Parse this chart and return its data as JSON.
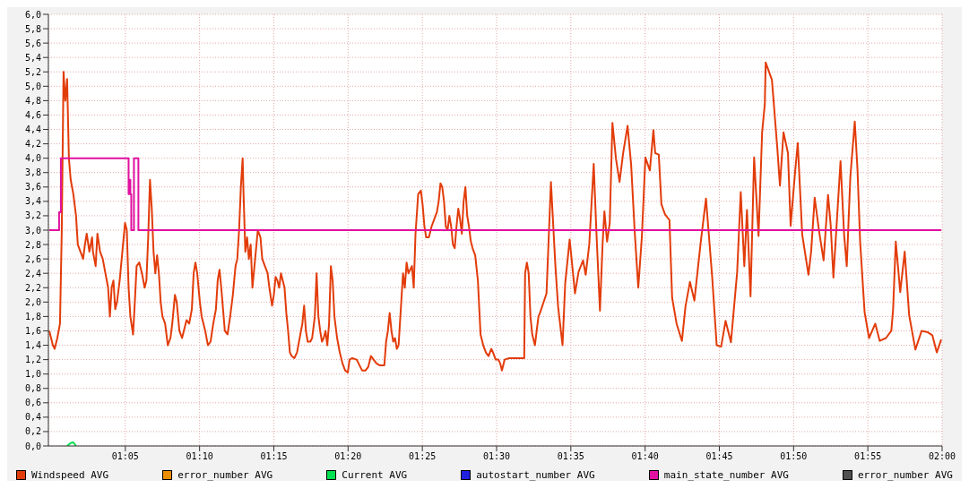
{
  "chart_data": {
    "type": "line",
    "grid": true,
    "legend": "bottom",
    "xlim": [
      0.997,
      2.0
    ],
    "xticks": [
      {
        "value": 1.083333,
        "label": "01:05"
      },
      {
        "value": 1.166667,
        "label": "01:10"
      },
      {
        "value": 1.25,
        "label": "01:15"
      },
      {
        "value": 1.333333,
        "label": "01:20"
      },
      {
        "value": 1.416667,
        "label": "01:25"
      },
      {
        "value": 1.5,
        "label": "01:30"
      },
      {
        "value": 1.583333,
        "label": "01:35"
      },
      {
        "value": 1.666667,
        "label": "01:40"
      },
      {
        "value": 1.75,
        "label": "01:45"
      },
      {
        "value": 1.833333,
        "label": "01:50"
      },
      {
        "value": 1.916667,
        "label": "01:55"
      },
      {
        "value": 2.0,
        "label": "02:00"
      }
    ],
    "ylim": [
      0,
      6
    ],
    "yticks": [
      {
        "value": 0,
        "label": "0,0"
      },
      {
        "value": 0.2,
        "label": "0,2"
      },
      {
        "value": 0.4,
        "label": "0,4"
      },
      {
        "value": 0.6,
        "label": "0,6"
      },
      {
        "value": 0.8,
        "label": "0,8"
      },
      {
        "value": 1.0,
        "label": "1,0"
      },
      {
        "value": 1.2,
        "label": "1,2"
      },
      {
        "value": 1.4,
        "label": "1,4"
      },
      {
        "value": 1.6,
        "label": "1,6"
      },
      {
        "value": 1.8,
        "label": "1,8"
      },
      {
        "value": 2.0,
        "label": "2,0"
      },
      {
        "value": 2.2,
        "label": "2,2"
      },
      {
        "value": 2.4,
        "label": "2,4"
      },
      {
        "value": 2.6,
        "label": "2,6"
      },
      {
        "value": 2.8,
        "label": "2,8"
      },
      {
        "value": 3.0,
        "label": "3,0"
      },
      {
        "value": 3.2,
        "label": "3,2"
      },
      {
        "value": 3.4,
        "label": "3,4"
      },
      {
        "value": 3.6,
        "label": "3,6"
      },
      {
        "value": 3.8,
        "label": "3,8"
      },
      {
        "value": 4.0,
        "label": "4,0"
      },
      {
        "value": 4.2,
        "label": "4,2"
      },
      {
        "value": 4.4,
        "label": "4,4"
      },
      {
        "value": 4.6,
        "label": "4,6"
      },
      {
        "value": 4.8,
        "label": "4,8"
      },
      {
        "value": 5.0,
        "label": "5,0"
      },
      {
        "value": 5.2,
        "label": "5,2"
      },
      {
        "value": 5.4,
        "label": "5,4"
      },
      {
        "value": 5.6,
        "label": "5,6"
      },
      {
        "value": 5.8,
        "label": "5,8"
      },
      {
        "value": 6.0,
        "label": "6,0"
      }
    ],
    "series": [
      {
        "name": "Windspeed AVG",
        "color": "#e23c0a",
        "x": [
          0.998,
          1.002,
          1.004,
          1.007,
          1.01,
          1.012,
          1.014,
          1.016,
          1.018,
          1.02,
          1.022,
          1.025,
          1.028,
          1.03,
          1.033,
          1.036,
          1.038,
          1.04,
          1.043,
          1.046,
          1.047,
          1.05,
          1.052,
          1.055,
          1.058,
          1.061,
          1.064,
          1.066,
          1.068,
          1.07,
          1.072,
          1.074,
          1.077,
          1.08,
          1.083,
          1.085,
          1.087,
          1.089,
          1.092,
          1.094,
          1.096,
          1.099,
          1.102,
          1.105,
          1.107,
          1.109,
          1.111,
          1.113,
          1.115,
          1.117,
          1.119,
          1.121,
          1.123,
          1.125,
          1.128,
          1.131,
          1.134,
          1.136,
          1.139,
          1.141,
          1.144,
          1.147,
          1.149,
          1.152,
          1.155,
          1.158,
          1.16,
          1.162,
          1.164,
          1.167,
          1.169,
          1.173,
          1.176,
          1.179,
          1.182,
          1.185,
          1.187,
          1.189,
          1.191,
          1.193,
          1.195,
          1.198,
          1.201,
          1.204,
          1.207,
          1.209,
          1.211,
          1.213,
          1.215,
          1.216,
          1.218,
          1.22,
          1.222,
          1.224,
          1.226,
          1.229,
          1.232,
          1.235,
          1.237,
          1.24,
          1.243,
          1.245,
          1.248,
          1.25,
          1.252,
          1.254,
          1.256,
          1.258,
          1.262,
          1.264,
          1.266,
          1.268,
          1.27,
          1.273,
          1.276,
          1.279,
          1.282,
          1.284,
          1.286,
          1.288,
          1.291,
          1.293,
          1.296,
          1.298,
          1.3,
          1.302,
          1.304,
          1.306,
          1.308,
          1.31,
          1.312,
          1.314,
          1.316,
          1.318,
          1.321,
          1.324,
          1.327,
          1.33,
          1.333,
          1.335,
          1.338,
          1.343,
          1.347,
          1.349,
          1.353,
          1.356,
          1.359,
          1.362,
          1.365,
          1.369,
          1.374,
          1.376,
          1.378,
          1.38,
          1.382,
          1.384,
          1.386,
          1.388,
          1.39,
          1.392,
          1.395,
          1.397,
          1.399,
          1.401,
          1.403,
          1.405,
          1.407,
          1.409,
          1.412,
          1.415,
          1.417,
          1.419,
          1.421,
          1.424,
          1.427,
          1.43,
          1.433,
          1.435,
          1.437,
          1.439,
          1.441,
          1.443,
          1.445,
          1.447,
          1.449,
          1.451,
          1.453,
          1.455,
          1.457,
          1.459,
          1.461,
          1.463,
          1.465,
          1.467,
          1.469,
          1.471,
          1.473,
          1.476,
          1.479,
          1.481,
          1.482,
          1.485,
          1.488,
          1.491,
          1.494,
          1.496,
          1.499,
          1.502,
          1.504,
          1.506,
          1.509,
          1.514,
          1.518,
          1.531,
          1.532,
          1.534,
          1.536,
          1.538,
          1.54,
          1.543,
          1.545,
          1.547,
          1.549,
          1.556,
          1.561,
          1.566,
          1.569,
          1.574,
          1.577,
          1.582,
          1.588,
          1.592,
          1.597,
          1.6,
          1.604,
          1.609,
          1.612,
          1.616,
          1.619,
          1.621,
          1.624,
          1.627,
          1.63,
          1.634,
          1.638,
          1.642,
          1.647,
          1.651,
          1.655,
          1.659,
          1.663,
          1.667,
          1.672,
          1.676,
          1.678,
          1.682,
          1.685,
          1.689,
          1.694,
          1.697,
          1.702,
          1.708,
          1.712,
          1.717,
          1.722,
          1.729,
          1.735,
          1.742,
          1.747,
          1.752,
          1.757,
          1.763,
          1.77,
          1.774,
          1.778,
          1.781,
          1.785,
          1.789,
          1.794,
          1.798,
          1.801,
          1.802,
          1.809,
          1.815,
          1.818,
          1.822,
          1.827,
          1.83,
          1.835,
          1.838,
          1.843,
          1.85,
          1.853,
          1.857,
          1.862,
          1.867,
          1.872,
          1.875,
          1.878,
          1.886,
          1.89,
          1.893,
          1.897,
          1.902,
          1.905,
          1.908,
          1.913,
          1.918,
          1.925,
          1.93,
          1.937,
          1.943,
          1.945,
          1.948,
          1.953,
          1.958,
          1.963,
          1.97,
          1.977,
          1.984,
          1.989,
          1.994,
          1.999
        ],
        "values": [
          1.6,
          1.4,
          1.35,
          1.5,
          1.7,
          3.0,
          5.2,
          4.8,
          5.1,
          4.0,
          3.7,
          3.5,
          3.2,
          2.8,
          2.7,
          2.6,
          2.8,
          2.95,
          2.7,
          2.9,
          2.7,
          2.5,
          2.95,
          2.7,
          2.6,
          2.4,
          2.2,
          1.8,
          2.2,
          2.3,
          1.9,
          2.0,
          2.3,
          2.7,
          3.1,
          3.0,
          2.2,
          1.8,
          1.55,
          2.0,
          2.5,
          2.55,
          2.4,
          2.2,
          2.3,
          2.9,
          3.7,
          3.3,
          2.7,
          2.4,
          2.65,
          2.4,
          2.0,
          1.8,
          1.7,
          1.4,
          1.5,
          1.7,
          2.1,
          2.0,
          1.6,
          1.5,
          1.6,
          1.75,
          1.7,
          1.9,
          2.4,
          2.55,
          2.4,
          2.0,
          1.8,
          1.6,
          1.4,
          1.45,
          1.7,
          1.9,
          2.3,
          2.45,
          2.2,
          1.9,
          1.6,
          1.55,
          1.8,
          2.1,
          2.5,
          2.6,
          3.0,
          3.6,
          4.0,
          3.5,
          2.7,
          2.9,
          2.6,
          2.8,
          2.2,
          2.6,
          3.0,
          2.9,
          2.6,
          2.5,
          2.4,
          2.2,
          1.95,
          2.1,
          2.35,
          2.3,
          2.2,
          2.4,
          2.2,
          1.85,
          1.6,
          1.3,
          1.25,
          1.22,
          1.3,
          1.5,
          1.7,
          1.95,
          1.6,
          1.45,
          1.45,
          1.5,
          1.8,
          2.4,
          1.8,
          1.6,
          1.45,
          1.5,
          1.6,
          1.4,
          1.7,
          2.5,
          2.3,
          1.8,
          1.5,
          1.3,
          1.15,
          1.05,
          1.02,
          1.2,
          1.22,
          1.2,
          1.1,
          1.05,
          1.05,
          1.1,
          1.25,
          1.2,
          1.15,
          1.12,
          1.12,
          1.45,
          1.6,
          1.85,
          1.6,
          1.45,
          1.5,
          1.35,
          1.4,
          1.8,
          2.4,
          2.2,
          2.55,
          2.4,
          2.45,
          2.5,
          2.2,
          2.95,
          3.5,
          3.55,
          3.35,
          3.05,
          2.9,
          2.9,
          3.05,
          3.15,
          3.25,
          3.4,
          3.65,
          3.6,
          3.4,
          3.05,
          3.0,
          3.2,
          3.05,
          2.8,
          2.75,
          3.05,
          3.3,
          3.15,
          2.95,
          3.4,
          3.6,
          3.2,
          3.05,
          2.85,
          2.75,
          2.65,
          2.3,
          1.8,
          1.55,
          1.4,
          1.3,
          1.25,
          1.35,
          1.3,
          1.2,
          1.2,
          1.15,
          1.05,
          1.2,
          1.22,
          1.22,
          1.22,
          2.4,
          2.55,
          2.4,
          1.8,
          1.55,
          1.4,
          1.6,
          1.8,
          1.86,
          2.12,
          3.67,
          2.5,
          1.94,
          1.4,
          2.26,
          2.87,
          2.12,
          2.42,
          2.58,
          2.38,
          2.8,
          3.92,
          2.98,
          1.88,
          2.82,
          3.26,
          2.84,
          3.1,
          4.49,
          3.99,
          3.67,
          4.07,
          4.45,
          3.91,
          2.98,
          2.2,
          2.9,
          4.01,
          3.83,
          4.39,
          4.07,
          4.05,
          3.36,
          3.22,
          3.14,
          2.06,
          1.7,
          1.46,
          1.94,
          2.28,
          2.02,
          2.82,
          3.44,
          2.34,
          1.4,
          1.38,
          1.74,
          1.44,
          2.42,
          3.53,
          2.5,
          3.28,
          2.08,
          4.01,
          2.92,
          4.36,
          4.75,
          5.33,
          5.09,
          4.15,
          3.62,
          4.36,
          4.07,
          3.06,
          3.81,
          4.21,
          2.94,
          2.38,
          2.7,
          3.45,
          2.98,
          2.58,
          3.49,
          3.06,
          2.34,
          3.96,
          2.94,
          2.5,
          3.74,
          4.51,
          3.85,
          2.84,
          1.86,
          1.5,
          1.7,
          1.46,
          1.5,
          1.6,
          1.9,
          2.84,
          2.14,
          2.7,
          1.82,
          1.34,
          1.6,
          1.58,
          1.54,
          1.3,
          1.48
        ]
      },
      {
        "name": "error_number AVG",
        "color": "#ea8f00"
      },
      {
        "name": "Current AVG",
        "color": "#00e050",
        "x": [
          1.018,
          1.022,
          1.025,
          1.028
        ],
        "values": [
          0,
          0.04,
          0.05,
          0
        ]
      },
      {
        "name": "autostart_number AVG",
        "color": "#2020e0"
      },
      {
        "name": "main_state_number AVG",
        "color": "#e010a0",
        "type": "step",
        "x": [
          0.998,
          1.009,
          1.011,
          1.087,
          1.088,
          1.089,
          1.09,
          1.093,
          1.098,
          1.999
        ],
        "values": [
          3.0,
          3.25,
          4.0,
          3.5,
          3.7,
          3.5,
          3.0,
          4.0,
          3.0,
          3.0
        ]
      },
      {
        "name": "error_number AVG",
        "color": "#505050"
      }
    ]
  }
}
